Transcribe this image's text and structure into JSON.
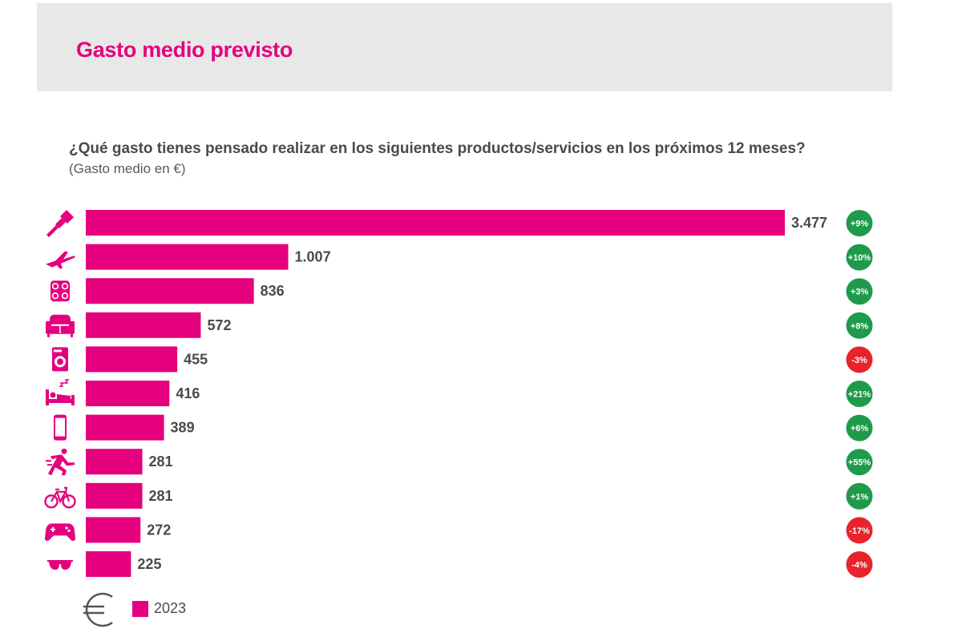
{
  "header": {
    "title": "Gasto medio previsto"
  },
  "question": "¿Qué gasto tienes pensado realizar en los siguientes productos/servicios en los próximos 12 meses?",
  "subtitle": "(Gasto medio en €)",
  "colors": {
    "bar": "#e5007e",
    "positive": "#1f9a4a",
    "negative": "#e8232b",
    "header_bg": "#e8e8e8",
    "text": "#4a4a4a"
  },
  "legend": {
    "label": "2023",
    "icon": "euro-icon"
  },
  "chart_data": {
    "type": "bar",
    "orientation": "horizontal",
    "categories": [
      "paint-roller-icon",
      "airplane-icon",
      "cooktop-icon",
      "sofa-icon",
      "washing-machine-icon",
      "bed-icon",
      "smartphone-icon",
      "runner-icon",
      "bicycle-icon",
      "gamepad-icon",
      "sunglasses-icon"
    ],
    "values": [
      3477,
      1007,
      836,
      572,
      455,
      416,
      389,
      281,
      281,
      272,
      225
    ],
    "value_labels": [
      "3.477",
      "1.007",
      "836",
      "572",
      "455",
      "416",
      "389",
      "281",
      "281",
      "272",
      "225"
    ],
    "changes": [
      "+9%",
      "+10%",
      "+3%",
      "+8%",
      "-3%",
      "+21%",
      "+6%",
      "+55%",
      "+1%",
      "-17%",
      "-4%"
    ],
    "series": [
      {
        "name": "2023",
        "values": [
          3477,
          1007,
          836,
          572,
          455,
          416,
          389,
          281,
          281,
          272,
          225
        ]
      }
    ],
    "xlim": [
      0,
      3477
    ],
    "grid": false,
    "legend": "bottom-left"
  }
}
